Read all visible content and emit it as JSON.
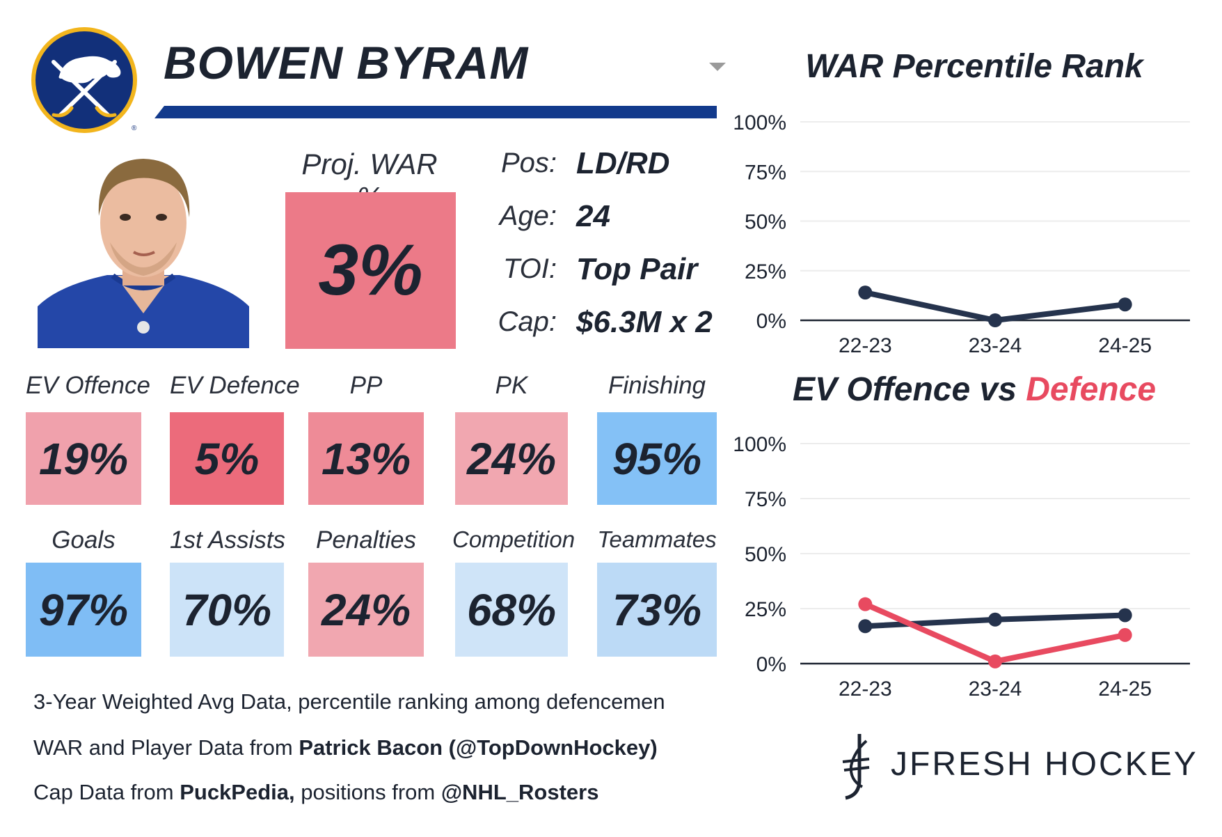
{
  "player": {
    "name": "BOWEN BYRAM",
    "proj_war_label": "Proj. WAR %",
    "proj_war_value": "3%"
  },
  "bio": [
    {
      "label": "Pos:",
      "value": "LD/RD"
    },
    {
      "label": "Age:",
      "value": "24"
    },
    {
      "label": "TOI:",
      "value": "Top Pair"
    },
    {
      "label": "Cap:",
      "value": "$6.3M x 2"
    }
  ],
  "metrics_row1": [
    {
      "label": "EV Offence",
      "value": "19%",
      "color": "#f0a1ac"
    },
    {
      "label": "EV Defence",
      "value": "5%",
      "color": "#ec6b7b"
    },
    {
      "label": "PP",
      "value": "13%",
      "color": "#ee8b97"
    },
    {
      "label": "PK",
      "value": "24%",
      "color": "#f1a7b0"
    },
    {
      "label": "Finishing",
      "value": "95%",
      "color": "#84c1f6"
    }
  ],
  "metrics_row2": [
    {
      "label": "Goals",
      "value": "97%",
      "color": "#7fbdf5"
    },
    {
      "label": "1st Assists",
      "value": "70%",
      "color": "#cce3f8"
    },
    {
      "label": "Penalties",
      "value": "24%",
      "color": "#f1a7b0"
    },
    {
      "label": "Competition",
      "value": "68%",
      "color": "#cfe4f8"
    },
    {
      "label": "Teammates",
      "value": "73%",
      "color": "#bcdaf6"
    }
  ],
  "footnotes": {
    "line1": "3-Year Weighted Avg Data, percentile ranking among defencemen",
    "line2_prefix": "WAR and Player Data from ",
    "line2_bold": "Patrick Bacon (@TopDownHockey)",
    "line3_prefix": "Cap Data from ",
    "line3_bold": "PuckPedia,",
    "line3_middle": " positions from ",
    "line3_bold2": "@NHL_Rosters"
  },
  "brand": {
    "name": "JFRESH HOCKEY"
  },
  "colors": {
    "navy": "#25334d",
    "red": "#e84a60",
    "banner_blue": "#123a8c"
  },
  "chart_data": [
    {
      "type": "line",
      "title": "WAR Percentile Rank",
      "categories": [
        "22-23",
        "23-24",
        "24-25"
      ],
      "series": [
        {
          "values": [
            14,
            0,
            8
          ],
          "color": "#25334d"
        }
      ],
      "yticks": [
        "0%",
        "25%",
        "50%",
        "75%",
        "100%"
      ],
      "ylim": [
        0,
        100
      ],
      "grid": true
    },
    {
      "type": "line",
      "title_part1": "EV Offence vs ",
      "title_part2": "Defence",
      "categories": [
        "22-23",
        "23-24",
        "24-25"
      ],
      "series": [
        {
          "values": [
            17,
            20,
            22
          ],
          "color": "#25334d"
        },
        {
          "values": [
            27,
            1,
            13
          ],
          "color": "#e84a60"
        }
      ],
      "yticks": [
        "0%",
        "25%",
        "50%",
        "75%",
        "100%"
      ],
      "ylim": [
        0,
        100
      ],
      "grid": true
    }
  ]
}
